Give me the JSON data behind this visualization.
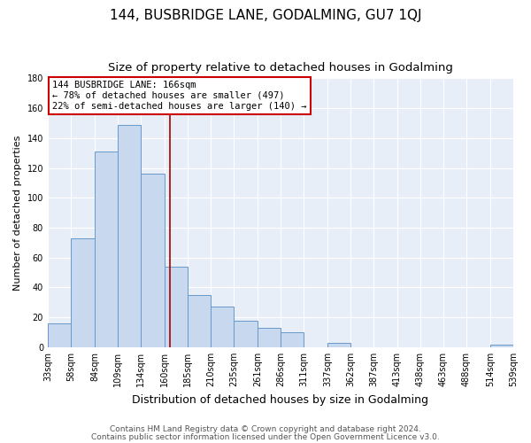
{
  "title": "144, BUSBRIDGE LANE, GODALMING, GU7 1QJ",
  "subtitle": "Size of property relative to detached houses in Godalming",
  "xlabel": "Distribution of detached houses by size in Godalming",
  "ylabel": "Number of detached properties",
  "bar_edges": [
    33,
    58,
    84,
    109,
    134,
    160,
    185,
    210,
    235,
    261,
    286,
    311,
    337,
    362,
    387,
    413,
    438,
    463,
    488,
    514,
    539
  ],
  "bar_heights": [
    16,
    73,
    131,
    149,
    116,
    54,
    35,
    27,
    18,
    13,
    10,
    0,
    3,
    0,
    0,
    0,
    0,
    0,
    0,
    2
  ],
  "tick_labels": [
    "33sqm",
    "58sqm",
    "84sqm",
    "109sqm",
    "134sqm",
    "160sqm",
    "185sqm",
    "210sqm",
    "235sqm",
    "261sqm",
    "286sqm",
    "311sqm",
    "337sqm",
    "362sqm",
    "387sqm",
    "413sqm",
    "438sqm",
    "463sqm",
    "488sqm",
    "514sqm",
    "539sqm"
  ],
  "bar_color": "#c8d8ee",
  "bar_edge_color": "#6699cc",
  "vline_x": 166,
  "vline_color": "#aa0000",
  "annotation_title": "144 BUSBRIDGE LANE: 166sqm",
  "annotation_line1": "← 78% of detached houses are smaller (497)",
  "annotation_line2": "22% of semi-detached houses are larger (140) →",
  "annotation_box_color": "#ffffff",
  "annotation_box_edge": "#cc0000",
  "ylim": [
    0,
    180
  ],
  "yticks": [
    0,
    20,
    40,
    60,
    80,
    100,
    120,
    140,
    160,
    180
  ],
  "footer1": "Contains HM Land Registry data © Crown copyright and database right 2024.",
  "footer2": "Contains public sector information licensed under the Open Government Licence v3.0.",
  "fig_bg_color": "#ffffff",
  "plot_bg_color": "#e8eef8",
  "grid_color": "#ffffff",
  "title_fontsize": 11,
  "subtitle_fontsize": 9.5,
  "xlabel_fontsize": 9,
  "ylabel_fontsize": 8,
  "tick_fontsize": 7,
  "annotation_fontsize": 7.5,
  "footer_fontsize": 6.5
}
